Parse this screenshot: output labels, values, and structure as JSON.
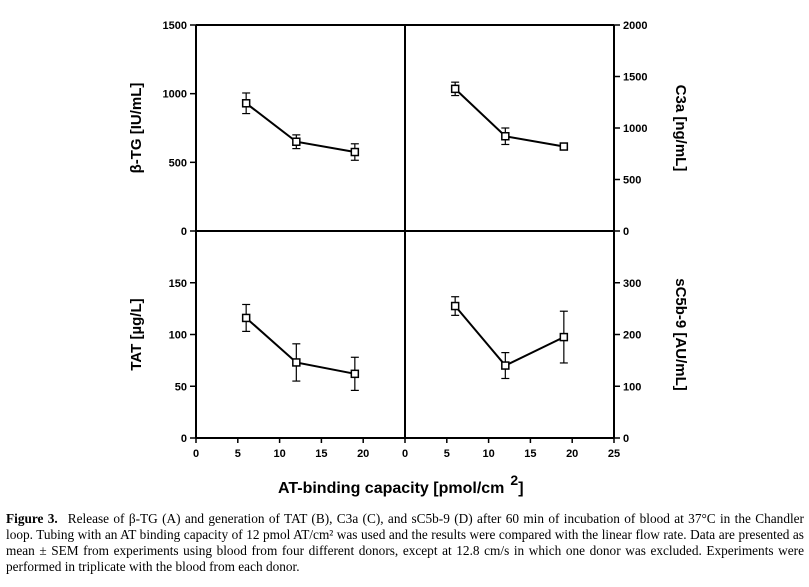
{
  "chart_data": {
    "type": "scatter",
    "x_label": "AT-binding capacity [pmol/cm",
    "x_label_superscript": "2",
    "x_label_close": "]",
    "panels": [
      {
        "id": "beta-tg",
        "position": "top-left",
        "ylabel": "β-TG [IU/mL]",
        "ylim": [
          0,
          1500
        ],
        "yticks": [
          0,
          500,
          1000,
          1500
        ],
        "xlim": [
          0,
          25
        ],
        "xticks": [
          0,
          5,
          10,
          15,
          20
        ],
        "x": [
          6,
          12,
          19
        ],
        "y": [
          930,
          650,
          575
        ],
        "err": [
          75,
          50,
          60
        ]
      },
      {
        "id": "c3a",
        "position": "top-right",
        "ylabel": "C3a [ng/mL]",
        "ylim": [
          0,
          2000
        ],
        "yticks": [
          0,
          500,
          1000,
          1500,
          2000
        ],
        "xlim": [
          0,
          25
        ],
        "xticks": [
          0,
          5,
          10,
          15,
          20,
          25
        ],
        "x": [
          6,
          12,
          19
        ],
        "y": [
          1380,
          920,
          820
        ],
        "err": [
          65,
          80,
          0
        ]
      },
      {
        "id": "tat",
        "position": "bottom-left",
        "ylabel": "TAT [µg/L]",
        "ylim": [
          0,
          200
        ],
        "yticks": [
          0,
          50,
          100,
          150
        ],
        "xlim": [
          0,
          25
        ],
        "xticks": [
          0,
          5,
          10,
          15,
          20
        ],
        "x": [
          6,
          12,
          19
        ],
        "y": [
          116,
          73,
          62
        ],
        "err": [
          13,
          18,
          16
        ]
      },
      {
        "id": "sc5b9",
        "position": "bottom-right",
        "ylabel": "sC5b-9 [AU/mL]",
        "ylim": [
          0,
          400
        ],
        "yticks": [
          0,
          100,
          200,
          300
        ],
        "xlim": [
          0,
          25
        ],
        "xticks": [
          0,
          5,
          10,
          15,
          20,
          25
        ],
        "x": [
          6,
          12,
          19
        ],
        "y": [
          255,
          140,
          195
        ],
        "err": [
          18,
          25,
          50
        ]
      }
    ]
  },
  "caption": {
    "label": "Figure 3.",
    "text": "Release of β-TG (A) and generation of TAT (B), C3a (C), and sC5b-9 (D) after 60 min of incubation of blood at 37°C in the Chandler loop. Tubing with an AT binding capacity of 12 pmol AT/cm² was used and the results were compared with the linear flow rate. Data are presented as mean ± SEM from experiments using blood from four different donors, except at 12.8 cm/s in which one donor was excluded. Experiments were performed in triplicate with the blood from each donor."
  }
}
